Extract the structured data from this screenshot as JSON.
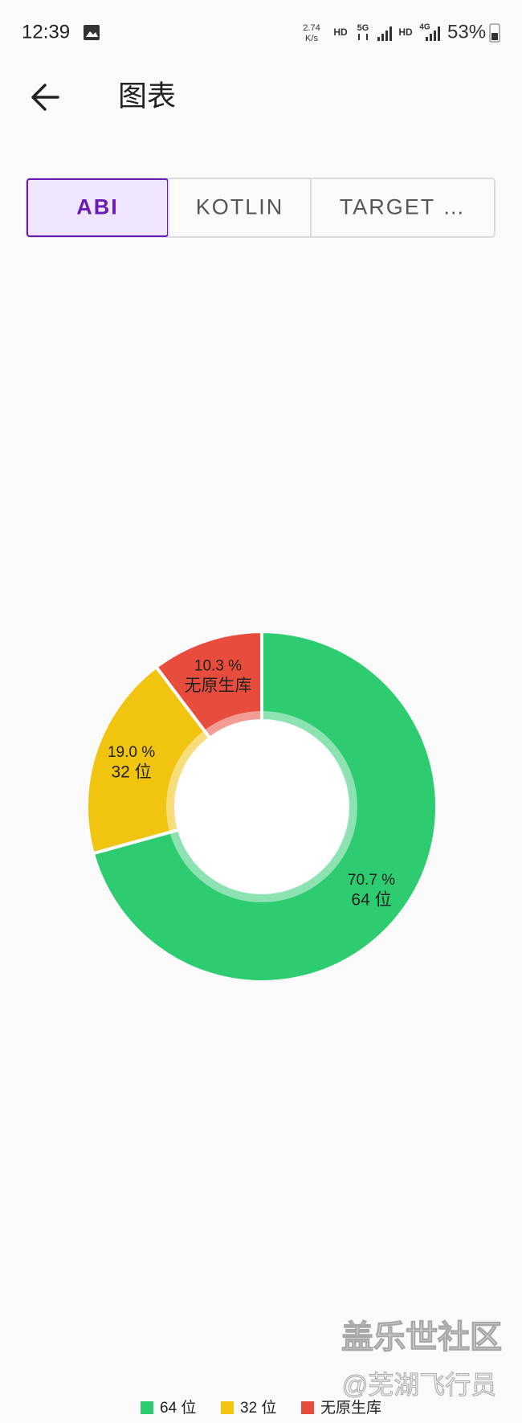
{
  "status_bar": {
    "time": "12:39",
    "net_speed": "2.74",
    "net_unit": "K/s",
    "sim1": "HD",
    "net1": "5G",
    "sim2": "HD",
    "net2": "4G",
    "battery": "53%"
  },
  "app_bar": {
    "title": "图表"
  },
  "tabs": [
    "ABI",
    "KOTLIN",
    "TARGET …"
  ],
  "selected_tab": 0,
  "chart_data": {
    "type": "pie",
    "categories": [
      "64 位",
      "32 位",
      "无原生库"
    ],
    "values": [
      70.7,
      19.0,
      10.3
    ],
    "value_labels": [
      "70.7 %",
      "19.0 %",
      "10.3 %"
    ],
    "colors": [
      "#2ecc71",
      "#f1c40f",
      "#e74c3c"
    ],
    "legend": "bottom"
  },
  "watermark": {
    "line1": "盖乐世社区",
    "line2": "@芜湖飞行员"
  }
}
